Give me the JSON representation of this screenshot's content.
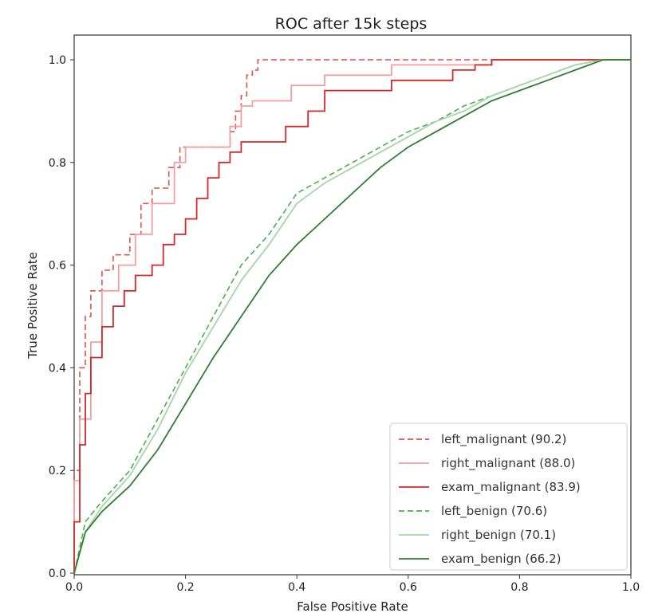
{
  "chart_data": {
    "type": "line",
    "title": "ROC after 15k steps",
    "xlabel": "False Positive Rate",
    "ylabel": "True Positive Rate",
    "xlim": [
      0.0,
      1.0
    ],
    "ylim": [
      0.0,
      1.0
    ],
    "xticks": [
      "0.0",
      "0.2",
      "0.4",
      "0.6",
      "0.8",
      "1.0"
    ],
    "yticks": [
      "0.0",
      "0.2",
      "0.4",
      "0.6",
      "0.8",
      "1.0"
    ],
    "grid": false,
    "legend_position": "lower-right",
    "series": [
      {
        "name": "left_malignant (90.2)",
        "color": "#d9534f",
        "style": "dashed",
        "x": [
          0.0,
          0.0,
          0.01,
          0.01,
          0.02,
          0.02,
          0.03,
          0.03,
          0.05,
          0.05,
          0.07,
          0.07,
          0.1,
          0.1,
          0.12,
          0.12,
          0.14,
          0.14,
          0.17,
          0.17,
          0.19,
          0.19,
          0.28,
          0.28,
          0.29,
          0.29,
          0.3,
          0.3,
          0.31,
          0.31,
          0.32,
          0.32,
          0.33,
          0.33,
          1.0
        ],
        "y": [
          0.0,
          0.2,
          0.2,
          0.4,
          0.4,
          0.5,
          0.5,
          0.55,
          0.55,
          0.59,
          0.59,
          0.62,
          0.62,
          0.66,
          0.66,
          0.72,
          0.72,
          0.75,
          0.75,
          0.79,
          0.79,
          0.83,
          0.83,
          0.86,
          0.86,
          0.9,
          0.9,
          0.93,
          0.93,
          0.97,
          0.97,
          0.98,
          0.98,
          1.0,
          1.0
        ]
      },
      {
        "name": "right_malignant (88.0)",
        "color": "#f0a0a0",
        "style": "solid",
        "x": [
          0.0,
          0.0,
          0.01,
          0.01,
          0.03,
          0.03,
          0.05,
          0.05,
          0.08,
          0.08,
          0.11,
          0.11,
          0.14,
          0.14,
          0.18,
          0.18,
          0.2,
          0.2,
          0.28,
          0.28,
          0.3,
          0.3,
          0.32,
          0.32,
          0.39,
          0.39,
          0.45,
          0.45,
          0.57,
          0.57,
          0.75,
          0.75,
          1.0
        ],
        "y": [
          0.0,
          0.18,
          0.18,
          0.3,
          0.3,
          0.45,
          0.45,
          0.55,
          0.55,
          0.6,
          0.6,
          0.66,
          0.66,
          0.72,
          0.72,
          0.8,
          0.8,
          0.83,
          0.83,
          0.87,
          0.87,
          0.91,
          0.91,
          0.92,
          0.92,
          0.95,
          0.95,
          0.97,
          0.97,
          0.99,
          0.99,
          1.0,
          1.0
        ]
      },
      {
        "name": "exam_malignant (83.9)",
        "color": "#d62728",
        "style": "solid",
        "x": [
          0.0,
          0.0,
          0.01,
          0.01,
          0.02,
          0.02,
          0.03,
          0.03,
          0.05,
          0.05,
          0.07,
          0.07,
          0.09,
          0.09,
          0.11,
          0.11,
          0.14,
          0.14,
          0.16,
          0.16,
          0.18,
          0.18,
          0.2,
          0.2,
          0.22,
          0.22,
          0.24,
          0.24,
          0.26,
          0.26,
          0.28,
          0.28,
          0.3,
          0.3,
          0.38,
          0.38,
          0.42,
          0.42,
          0.45,
          0.45,
          0.57,
          0.57,
          0.68,
          0.68,
          0.72,
          0.72,
          0.75,
          0.75,
          1.0
        ],
        "y": [
          0.0,
          0.1,
          0.1,
          0.25,
          0.25,
          0.35,
          0.35,
          0.42,
          0.42,
          0.48,
          0.48,
          0.52,
          0.52,
          0.55,
          0.55,
          0.58,
          0.58,
          0.6,
          0.6,
          0.64,
          0.64,
          0.66,
          0.66,
          0.69,
          0.69,
          0.73,
          0.73,
          0.77,
          0.77,
          0.8,
          0.8,
          0.82,
          0.82,
          0.84,
          0.84,
          0.87,
          0.87,
          0.9,
          0.9,
          0.94,
          0.94,
          0.96,
          0.96,
          0.98,
          0.98,
          0.99,
          0.99,
          1.0,
          1.0
        ]
      },
      {
        "name": "left_benign (70.6)",
        "color": "#4caf50",
        "style": "dashed",
        "x": [
          0.0,
          0.02,
          0.05,
          0.1,
          0.15,
          0.2,
          0.25,
          0.3,
          0.35,
          0.4,
          0.45,
          0.5,
          0.55,
          0.6,
          0.65,
          0.7,
          0.75,
          0.8,
          0.85,
          0.9,
          0.95,
          1.0
        ],
        "y": [
          0.0,
          0.1,
          0.14,
          0.2,
          0.3,
          0.4,
          0.5,
          0.6,
          0.66,
          0.74,
          0.77,
          0.8,
          0.83,
          0.86,
          0.88,
          0.91,
          0.93,
          0.95,
          0.97,
          0.99,
          1.0,
          1.0
        ]
      },
      {
        "name": "right_benign (70.1)",
        "color": "#a5d6a7",
        "style": "solid",
        "x": [
          0.0,
          0.02,
          0.05,
          0.1,
          0.15,
          0.2,
          0.25,
          0.3,
          0.35,
          0.4,
          0.45,
          0.5,
          0.55,
          0.6,
          0.65,
          0.7,
          0.75,
          0.8,
          0.85,
          0.9,
          0.95,
          1.0
        ],
        "y": [
          0.0,
          0.08,
          0.13,
          0.19,
          0.28,
          0.39,
          0.48,
          0.57,
          0.64,
          0.72,
          0.76,
          0.79,
          0.82,
          0.85,
          0.88,
          0.9,
          0.93,
          0.95,
          0.97,
          0.99,
          1.0,
          1.0
        ]
      },
      {
        "name": "exam_benign (66.2)",
        "color": "#2e7d32",
        "style": "solid",
        "x": [
          0.0,
          0.02,
          0.05,
          0.1,
          0.15,
          0.2,
          0.25,
          0.3,
          0.35,
          0.4,
          0.45,
          0.5,
          0.55,
          0.6,
          0.65,
          0.7,
          0.75,
          0.8,
          0.85,
          0.9,
          0.95,
          1.0
        ],
        "y": [
          0.0,
          0.08,
          0.12,
          0.17,
          0.24,
          0.33,
          0.42,
          0.5,
          0.58,
          0.64,
          0.69,
          0.74,
          0.79,
          0.83,
          0.86,
          0.89,
          0.92,
          0.94,
          0.96,
          0.98,
          1.0,
          1.0
        ]
      }
    ]
  }
}
